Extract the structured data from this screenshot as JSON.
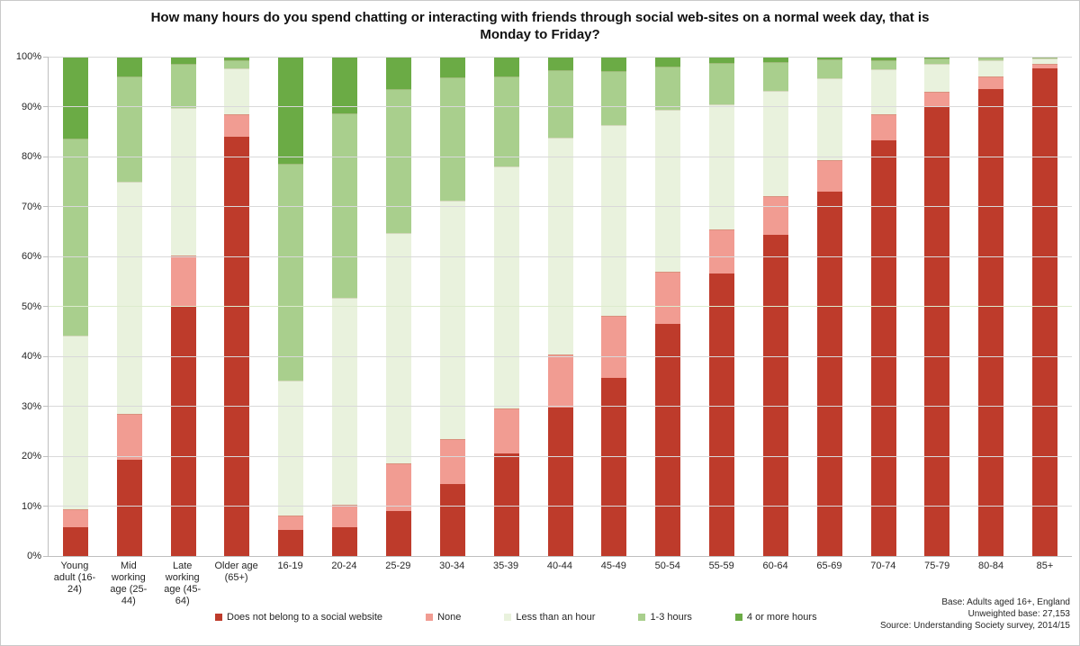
{
  "title_lines": [
    "How many hours do you spend chatting or interacting with friends through social web-sites on a normal week day, that is",
    "Monday to Friday?"
  ],
  "y_axis": {
    "min": 0,
    "max": 100,
    "step": 10,
    "tick_labels": [
      "0%",
      "10%",
      "20%",
      "30%",
      "40%",
      "50%",
      "60%",
      "70%",
      "80%",
      "90%",
      "100%"
    ]
  },
  "footnote": {
    "lines": [
      "Base: Adults aged 16+, England",
      "Unweighted base: 27,153",
      "Source: Understanding Society survey, 2014/15"
    ]
  },
  "colors": {
    "grid": "#d9d9d9",
    "grid_50pct": "#dcebcd",
    "axis": "#bfbfbf"
  },
  "chart_data": {
    "type": "bar",
    "stacked": true,
    "percent_stacked": true,
    "title": "How many hours do you spend chatting or interacting with friends through social web-sites on a normal week day, that is Monday to Friday?",
    "xlabel": "",
    "ylabel": "",
    "ylim": [
      0,
      100
    ],
    "grid": true,
    "legend_position": "bottom",
    "categories": [
      "Young\nadult (16-\n24)",
      "Mid\nworking\nage (25-\n44)",
      "Late\nworking\nage (45-\n64)",
      "Older age\n(65+)",
      "16-19",
      "20-24",
      "25-29",
      "30-34",
      "35-39",
      "40-44",
      "45-49",
      "50-54",
      "55-59",
      "60-64",
      "65-69",
      "70-74",
      "75-79",
      "80-84",
      "85+"
    ],
    "series": [
      {
        "name": "Does not belong to a social website",
        "color": "#be3b2b",
        "values": [
          5.8,
          19.3,
          50.0,
          84.0,
          5.2,
          5.8,
          9.1,
          14.4,
          20.6,
          29.7,
          35.7,
          46.4,
          56.5,
          64.3,
          73.0,
          83.2,
          90.0,
          93.5,
          97.7
        ]
      },
      {
        "name": "None",
        "color": "#f19c92",
        "values": [
          3.6,
          9.2,
          10.2,
          4.5,
          3.0,
          4.5,
          9.5,
          9.1,
          9.0,
          10.6,
          12.4,
          10.6,
          9.0,
          7.7,
          6.3,
          5.3,
          3.0,
          2.5,
          0.9
        ]
      },
      {
        "name": "Less than an hour",
        "color": "#e9f2dd",
        "values": [
          34.8,
          46.5,
          29.5,
          9.2,
          26.9,
          41.5,
          46.1,
          47.6,
          48.4,
          43.4,
          38.2,
          32.3,
          25.0,
          21.2,
          16.3,
          9.0,
          5.5,
          3.3,
          1.0
        ]
      },
      {
        "name": "1-3 hours",
        "color": "#a9cf8d",
        "values": [
          39.5,
          21.0,
          8.9,
          1.6,
          43.5,
          36.9,
          28.8,
          24.8,
          18.0,
          13.6,
          10.8,
          8.7,
          8.3,
          5.8,
          3.9,
          1.8,
          1.2,
          0.5,
          0.3
        ]
      },
      {
        "name": "4 or more hours",
        "color": "#6bab45",
        "values": [
          16.3,
          4.0,
          1.4,
          0.7,
          21.4,
          11.3,
          6.5,
          4.1,
          4.0,
          2.7,
          2.9,
          2.0,
          1.2,
          1.0,
          0.5,
          0.7,
          0.3,
          0.2,
          0.1
        ]
      }
    ]
  }
}
